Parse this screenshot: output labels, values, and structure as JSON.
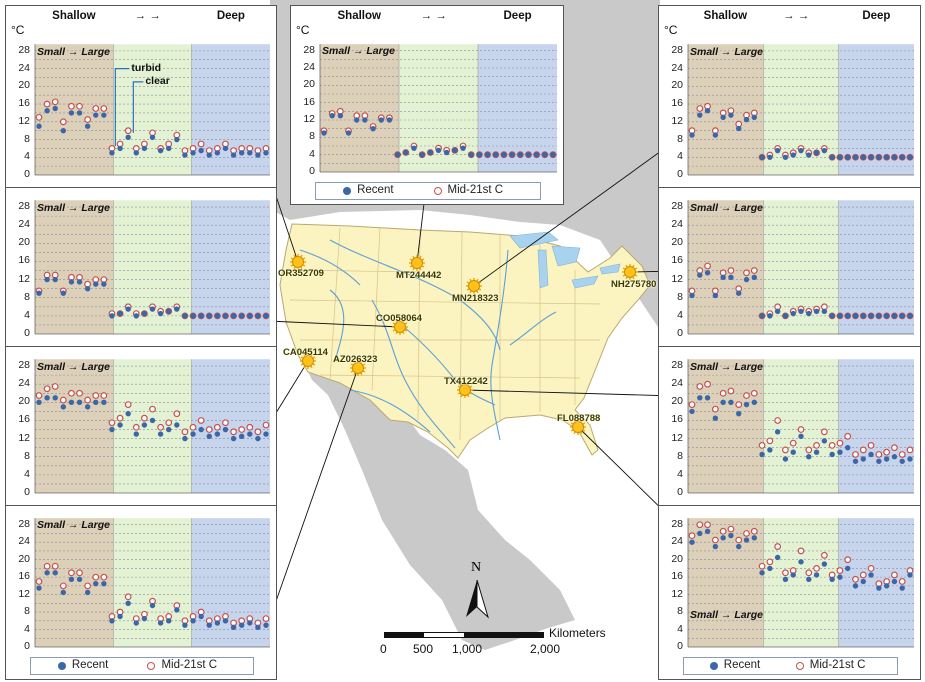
{
  "header": {
    "shallow": "Shallow",
    "arrows": "→  →",
    "deep": "Deep",
    "unit": "°C"
  },
  "size_label": "Small → Large",
  "annotations": {
    "turbid": "turbid",
    "clear": "clear"
  },
  "legend": {
    "recent": "Recent",
    "future": "Mid-21st C"
  },
  "y_ticks": [
    "0",
    "4",
    "8",
    "12",
    "16",
    "20",
    "24",
    "28"
  ],
  "colors": {
    "shallow": "#ddd0b8",
    "mid": "#e4f2d4",
    "deep": "#c6d4ec",
    "recent": "#3b66a8",
    "future": "#c8504b",
    "land": "#fbf3c0",
    "water": "#9ccbe8",
    "lakes": "#a8d2ee",
    "foreign": "#c9c9c9",
    "rivers": "#5aa0d8"
  },
  "sites": [
    "OR352709",
    "MT244442",
    "MN218323",
    "NH275780",
    "CO058064",
    "CA045114",
    "AZ026323",
    "TX412242",
    "FL088788"
  ],
  "scale_bar": {
    "title": "Kilometers",
    "ticks": [
      "0",
      "500",
      "1,000",
      "2,000"
    ]
  },
  "north": "N",
  "chart_data": [
    {
      "id": "OR352709",
      "type": "scatter",
      "ylim": [
        0,
        30
      ],
      "recent": [
        11,
        14.5,
        15,
        10,
        14,
        14,
        11,
        13.5,
        13.5,
        5,
        6,
        8.5,
        5,
        6,
        8.5,
        5.5,
        6,
        8,
        4.5,
        5,
        5.5,
        4.5,
        5,
        6,
        4.5,
        5,
        5,
        4.5,
        5
      ],
      "future": [
        13,
        16,
        16.5,
        12,
        15.5,
        15.5,
        12.5,
        15,
        15,
        6,
        7,
        10,
        6,
        7,
        9.5,
        6,
        7,
        9,
        5.5,
        6,
        7,
        5.5,
        6,
        7,
        5.5,
        6,
        6,
        5.5,
        6
      ]
    },
    {
      "id": "MT244442",
      "type": "scatter",
      "ylim": [
        0,
        30
      ],
      "recent": [
        9,
        13,
        13,
        9,
        12,
        12,
        10,
        12,
        12,
        4,
        4.5,
        5.5,
        4,
        4.5,
        5,
        4.5,
        5,
        5.5,
        4,
        4,
        4,
        4,
        4,
        4,
        4,
        4,
        4,
        4,
        4
      ],
      "future": [
        9.5,
        13.5,
        14,
        9.5,
        13,
        13,
        10.5,
        12.5,
        12.5,
        4,
        4.5,
        6,
        4,
        4.5,
        5.5,
        5,
        5,
        6,
        4,
        4,
        4,
        4,
        4,
        4,
        4,
        4,
        4,
        4,
        4
      ]
    },
    {
      "id": "MN218323",
      "type": "scatter",
      "ylim": [
        0,
        30
      ],
      "recent": [
        9,
        13.5,
        14.5,
        9,
        13,
        13.5,
        10.5,
        12.5,
        13,
        4,
        4,
        5.5,
        4,
        4.5,
        5.5,
        4.5,
        5,
        5.5,
        4,
        4,
        4,
        4,
        4,
        4,
        4,
        4,
        4,
        4,
        4
      ],
      "future": [
        10,
        15,
        15.5,
        10,
        14,
        14.5,
        11.5,
        13.5,
        14,
        4,
        4.5,
        6,
        4.5,
        5,
        6,
        5,
        5,
        6,
        4,
        4,
        4,
        4,
        4,
        4,
        4,
        4,
        4,
        4,
        4
      ]
    },
    {
      "id": "CO058064",
      "type": "scatter",
      "ylim": [
        0,
        30
      ],
      "recent": [
        9,
        12,
        12,
        9,
        11.5,
        11.5,
        10,
        11,
        11,
        4,
        4.5,
        5.5,
        4,
        4.5,
        5.5,
        4.5,
        5,
        5.5,
        4,
        4,
        4,
        4,
        4,
        4,
        4,
        4,
        4,
        4,
        4
      ],
      "future": [
        9.5,
        13,
        13,
        9.5,
        12.5,
        12.5,
        11,
        12,
        12,
        4.5,
        4.5,
        6,
        4.5,
        4.5,
        6,
        5,
        5,
        6,
        4,
        4,
        4,
        4,
        4,
        4,
        4,
        4,
        4,
        4,
        4
      ]
    },
    {
      "id": "NH275780",
      "type": "scatter",
      "ylim": [
        0,
        30
      ],
      "recent": [
        8.5,
        13,
        13.5,
        8.5,
        12.5,
        12.5,
        9,
        12,
        12.5,
        4,
        4,
        5,
        4,
        4.5,
        5,
        4.5,
        5,
        5,
        4,
        4,
        4,
        4,
        4,
        4,
        4,
        4,
        4,
        4,
        4
      ],
      "future": [
        9.5,
        14,
        15,
        9.5,
        13.5,
        14,
        10,
        13.5,
        14,
        4,
        4.5,
        6,
        4,
        5,
        5.5,
        5,
        5.5,
        6,
        4,
        4,
        4,
        4,
        4,
        4,
        4,
        4,
        4,
        4,
        4
      ]
    },
    {
      "id": "CA045114",
      "type": "scatter",
      "ylim": [
        0,
        30
      ],
      "recent": [
        20,
        21,
        21,
        19,
        20,
        20,
        19,
        20,
        20,
        14,
        15,
        17.5,
        13,
        15,
        16,
        13,
        14,
        15,
        12,
        13,
        14,
        12.5,
        13,
        14,
        12,
        12.5,
        13,
        12,
        13
      ],
      "future": [
        21.5,
        23,
        23.5,
        20.5,
        22,
        22,
        20.5,
        21.5,
        21.5,
        15.5,
        16.5,
        19.5,
        14.5,
        16.5,
        18.5,
        14.5,
        15.5,
        17.5,
        13.5,
        14.5,
        16,
        14,
        14.5,
        15.5,
        13.5,
        14,
        14.5,
        13.5,
        15
      ]
    },
    {
      "id": "TX412242",
      "type": "scatter",
      "ylim": [
        0,
        30
      ],
      "recent": [
        18,
        21,
        21,
        16.5,
        20,
        20,
        17.5,
        19.5,
        20,
        8.5,
        9.5,
        13.5,
        7.5,
        9,
        12.5,
        8,
        9,
        11.5,
        8.5,
        9,
        10,
        7,
        7.5,
        8.5,
        7,
        7.5,
        8,
        7,
        7.5
      ],
      "future": [
        19.5,
        23.5,
        24,
        18.5,
        22,
        22.5,
        19.5,
        21.5,
        22,
        10.5,
        11.5,
        16,
        9.5,
        11,
        14,
        9.5,
        10.5,
        13.5,
        10.5,
        11,
        12.5,
        8.5,
        9.5,
        10.5,
        8.5,
        9,
        10,
        8.5,
        9.5
      ]
    },
    {
      "id": "AZ026323",
      "type": "scatter",
      "ylim": [
        0,
        30
      ],
      "recent": [
        13.5,
        17,
        17,
        12.5,
        15.5,
        15.5,
        12.5,
        14.5,
        14.5,
        6,
        7,
        10,
        5.5,
        6.5,
        9.5,
        5.5,
        6,
        8.5,
        5,
        6,
        7,
        5,
        5.5,
        6,
        4.5,
        5,
        5.5,
        4.5,
        5
      ],
      "future": [
        15,
        18.5,
        18.5,
        14,
        17,
        17,
        14,
        16,
        16,
        7,
        8,
        11.5,
        6.5,
        7.5,
        10.5,
        6.5,
        7,
        9.5,
        6,
        7,
        8,
        6,
        6.5,
        7,
        5.5,
        6,
        6.5,
        5.5,
        6.5
      ]
    },
    {
      "id": "FL088788",
      "type": "scatter",
      "ylim": [
        0,
        30
      ],
      "recent": [
        24,
        26,
        26.5,
        23,
        25,
        25.5,
        23,
        24.5,
        25,
        17,
        18,
        20.5,
        15.5,
        16.5,
        19.5,
        15.5,
        16.5,
        19,
        15.5,
        16,
        18,
        14,
        15,
        16.5,
        13.5,
        14,
        15,
        13.5,
        16.5
      ],
      "future": [
        25.5,
        28,
        28,
        24.5,
        26.5,
        27,
        24.5,
        26,
        26.5,
        18.5,
        19.5,
        23,
        17,
        17.5,
        22,
        17,
        18,
        21,
        16.5,
        17.5,
        20,
        15.5,
        16.5,
        18,
        14.5,
        15,
        16.5,
        15,
        17.5
      ]
    }
  ]
}
